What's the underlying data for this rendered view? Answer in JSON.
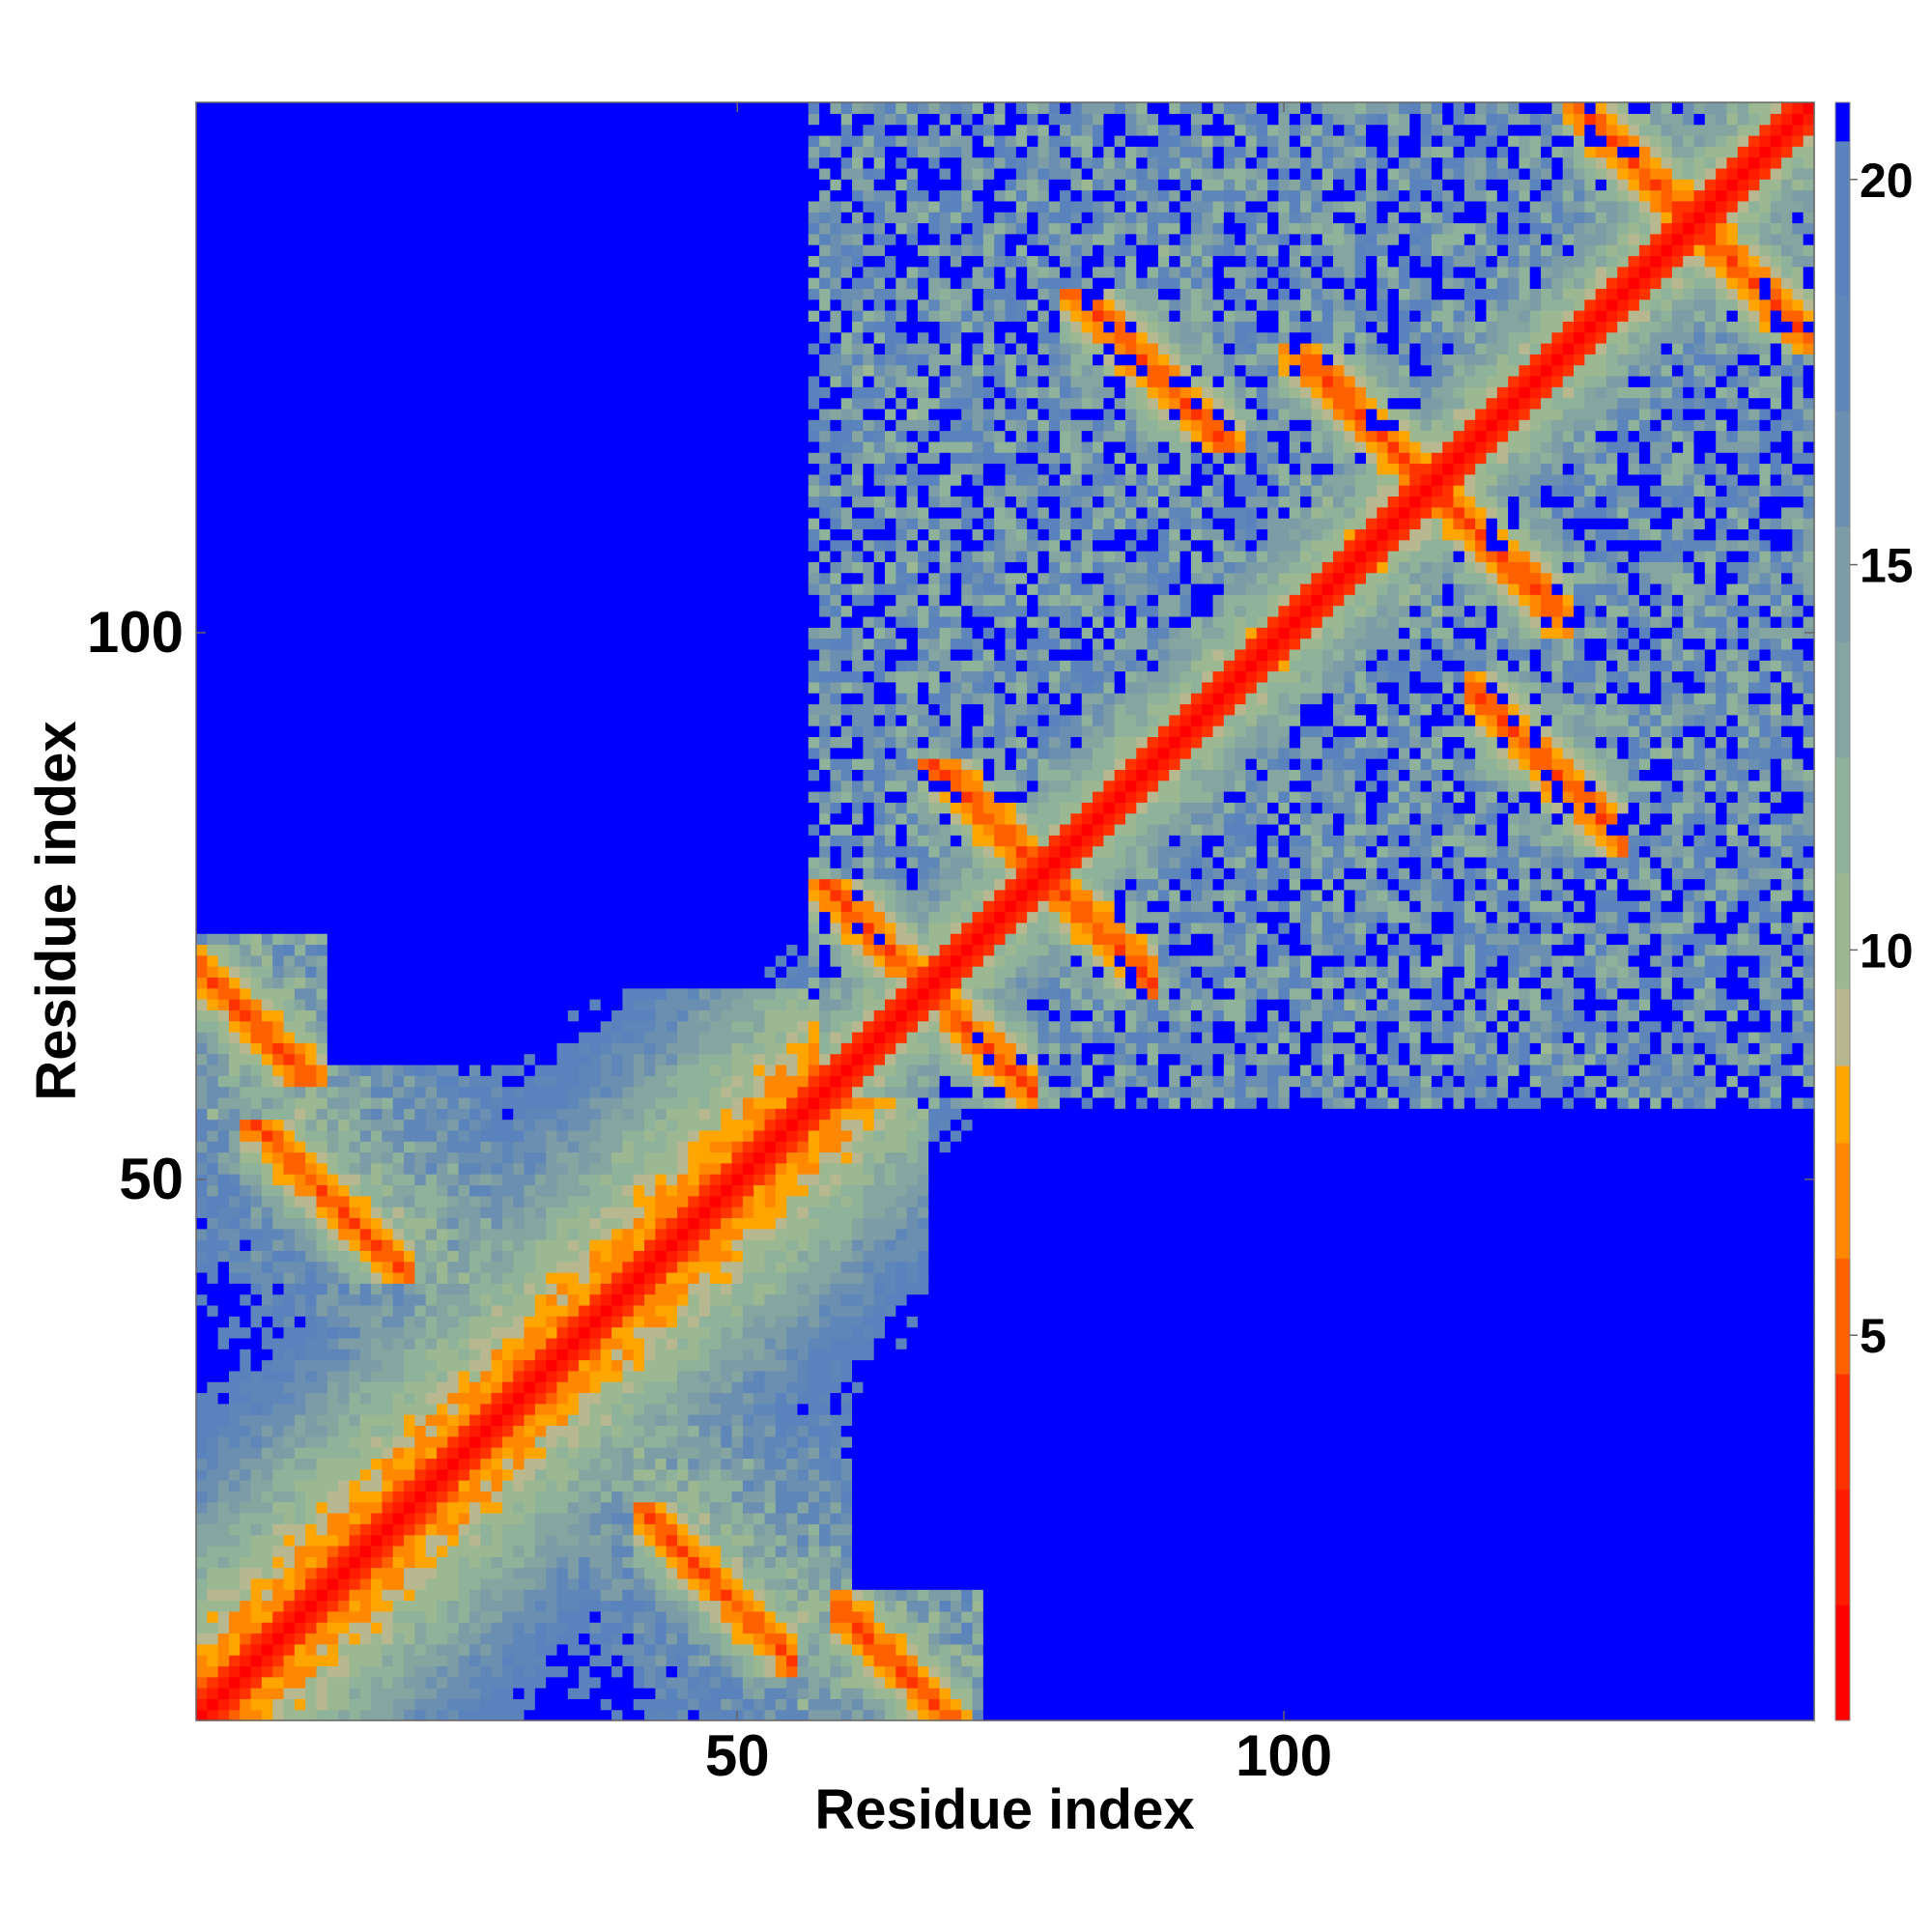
{
  "chart_data": {
    "type": "heatmap",
    "title": "",
    "xlabel": "Residue index",
    "ylabel": "Residue index",
    "n_residues": 148,
    "xlim": [
      1,
      148
    ],
    "ylim": [
      1,
      148
    ],
    "x_ticks": [
      50,
      100
    ],
    "y_ticks": [
      50,
      100
    ],
    "colorbar": {
      "ticks": [
        5,
        10,
        15,
        20
      ],
      "range": [
        0,
        21
      ],
      "bins": [
        {
          "max": 1.5,
          "color": "#ff0000"
        },
        {
          "max": 3,
          "color": "#ff1a00"
        },
        {
          "max": 4.5,
          "color": "#ff3300"
        },
        {
          "max": 6,
          "color": "#ff6000"
        },
        {
          "max": 7.5,
          "color": "#ff8800"
        },
        {
          "max": 8.5,
          "color": "#ffa500"
        },
        {
          "max": 9.5,
          "color": "#b8b890"
        },
        {
          "max": 11,
          "color": "#9cb892"
        },
        {
          "max": 12.5,
          "color": "#8fb29a"
        },
        {
          "max": 14,
          "color": "#85a6a0"
        },
        {
          "max": 15.5,
          "color": "#7c9ca6"
        },
        {
          "max": 17,
          "color": "#6a8fb0"
        },
        {
          "max": 18.5,
          "color": "#5f86b8"
        },
        {
          "max": 20.5,
          "color": "#5a82bd"
        },
        {
          "max": 999,
          "color": "#0000ff"
        }
      ]
    },
    "notes_structure": {
      "diagonal": "distance ~0 along i=j",
      "strand_pairs": [
        {
          "a": [
            2,
            8
          ],
          "b": [
            62,
            68
          ],
          "type": "antiparallel"
        },
        {
          "a": [
            9,
            16
          ],
          "b": [
            44,
            52
          ],
          "type": "antiparallel"
        },
        {
          "a": [
            61,
            67
          ],
          "b": [
            68,
            74
          ],
          "type": "antiparallel"
        },
        {
          "a": [
            71,
            78
          ],
          "b": [
            78,
            85
          ],
          "type": "antiparallel"
        },
        {
          "a": [
            84,
            92
          ],
          "b": [
            120,
            128
          ],
          "type": "antiparallel"
        },
        {
          "a": [
            104,
            112
          ],
          "b": [
            115,
            123
          ],
          "type": "antiparallel"
        },
        {
          "a": [
            130,
            137
          ],
          "b": [
            138,
            145
          ],
          "type": "antiparallel"
        }
      ]
    }
  }
}
